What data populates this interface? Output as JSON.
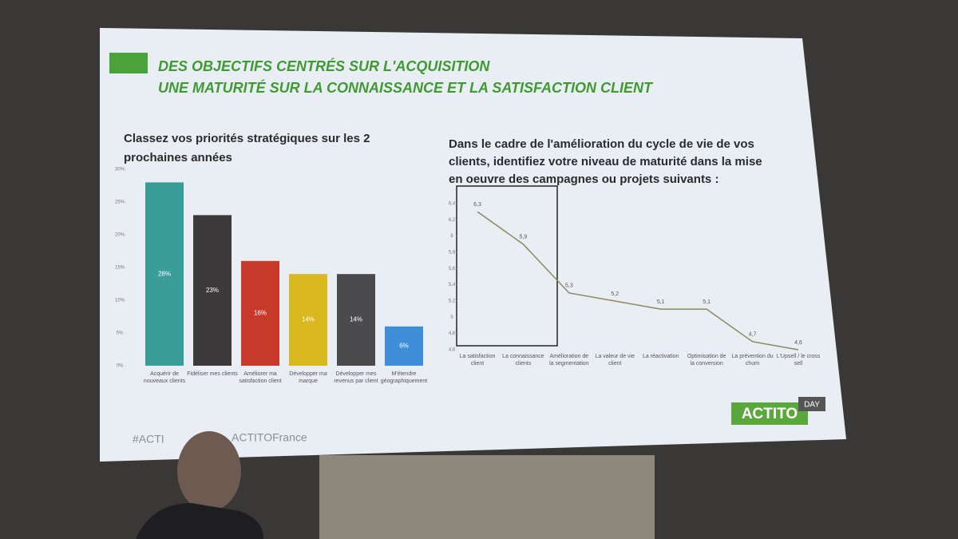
{
  "slide": {
    "header": [
      "DES OBJECTIFS CENTRÉS SUR L'ACQUISITION",
      "UNE MATURITÉ SUR LA CONNAISSANCE ET LA SATISFACTION CLIENT"
    ],
    "footer": [
      "#ACTI",
      "ACTITOFrance"
    ],
    "logo": "ACTITO",
    "logo_badge": "DAY"
  },
  "chart_data": [
    {
      "type": "bar",
      "title": [
        "Classez vos priorités stratégiques sur les 2",
        "prochaines années"
      ],
      "categories": [
        "Acquérir de nouveaux clients",
        "Fidéliser mes clients",
        "Améliorer ma satisfaction client",
        "Développer ma marque",
        "Développer mes revenus par client",
        "M'étendre géographiquement"
      ],
      "values": [
        28,
        23,
        16,
        14,
        14,
        6
      ],
      "value_labels": [
        "28%",
        "23%",
        "16%",
        "14%",
        "14%",
        "6%"
      ],
      "colors": [
        "#3a9d98",
        "#3b3939",
        "#c63a2c",
        "#d8b71f",
        "#4b4b4d",
        "#3f8fd8"
      ],
      "ylim": [
        0,
        30
      ],
      "yticks": [
        {
          "value": 0,
          "label": "0%"
        },
        {
          "value": 5,
          "label": "5%"
        },
        {
          "value": 10,
          "label": "10%"
        },
        {
          "value": 15,
          "label": "15%"
        },
        {
          "value": 20,
          "label": "20%"
        },
        {
          "value": 25,
          "label": "25%"
        },
        {
          "value": 30,
          "label": "30%"
        }
      ]
    },
    {
      "type": "line",
      "title": [
        "Dans le cadre de l'amélioration du cycle de vie de vos",
        "clients, identifiez votre niveau de maturité dans la mise",
        "en oeuvre des campagnes ou projets suivants :"
      ],
      "categories": [
        "La satisfaction client",
        "La connaissance clients",
        "Amélioration de la segmentation",
        "La valeur de vie client",
        "La réactivation",
        "Optimisation de la conversion",
        "La prévention du churn",
        "L'Upsell / le cross sell"
      ],
      "values": [
        6.3,
        5.9,
        5.3,
        5.2,
        5.1,
        5.1,
        4.7,
        4.6
      ],
      "value_labels": [
        "6,3",
        "5,9",
        "5,3",
        "5,2",
        "5,1",
        "5,1",
        "4,7",
        "4,6"
      ],
      "color": "#8b8a5c",
      "ylim": [
        4.6,
        6.4
      ],
      "yticks": [
        {
          "value": 4.6,
          "label": "4,6"
        },
        {
          "value": 4.8,
          "label": "4,8"
        },
        5,
        {
          "value": 5.2,
          "label": "5,2"
        },
        {
          "value": 5.4,
          "label": "5,4"
        },
        {
          "value": 5.6,
          "label": "5,6"
        },
        {
          "value": 5.8,
          "label": "5,8"
        },
        6,
        {
          "value": 6.2,
          "label": "6,2"
        },
        {
          "value": 6.4,
          "label": "6,4"
        }
      ]
    }
  ]
}
